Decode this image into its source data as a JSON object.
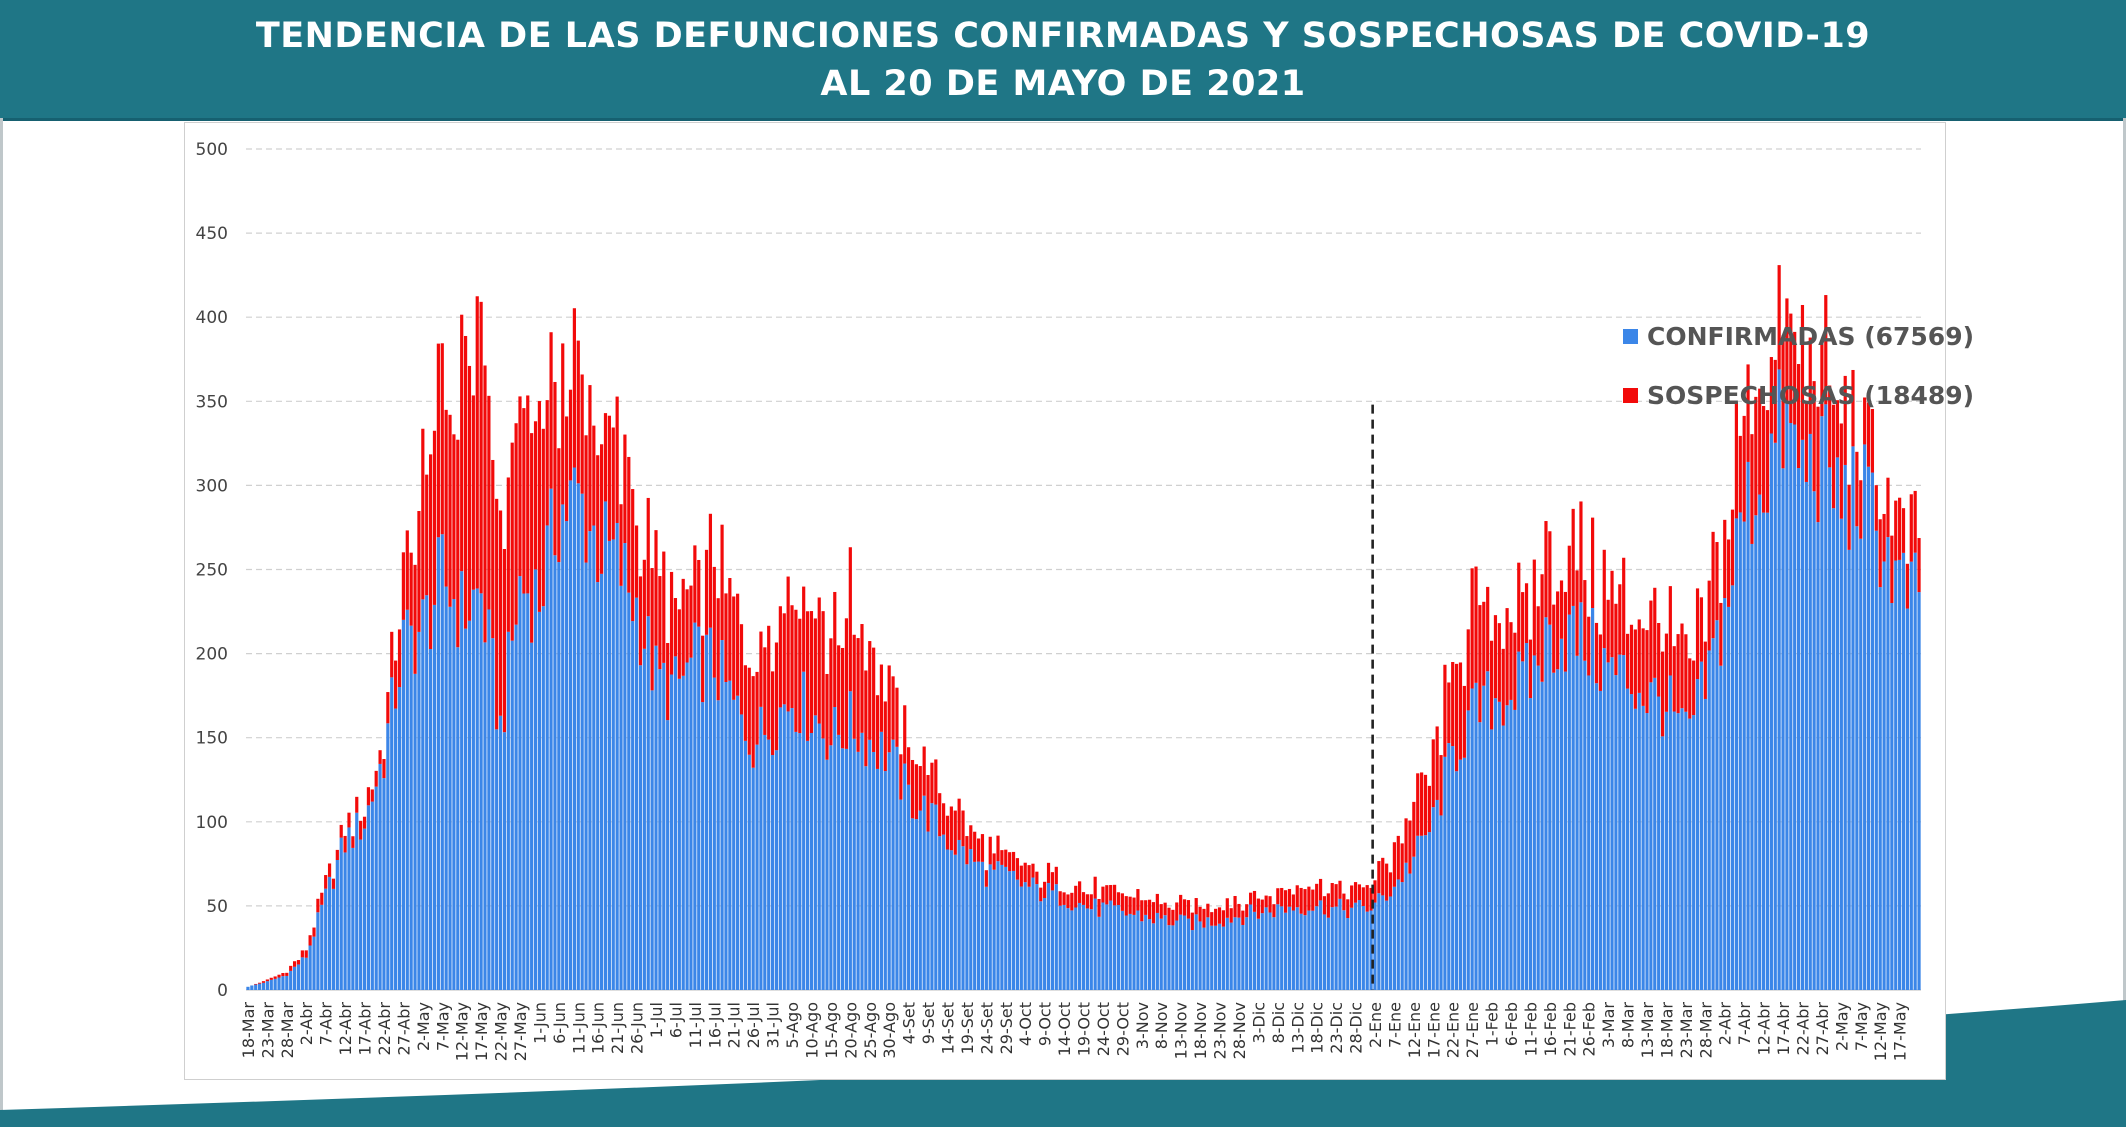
{
  "header": {
    "title_line1": "TENDENCIA DE LAS DEFUNCIONES CONFIRMADAS Y SOSPECHOSAS DE COVID-19",
    "title_line2": "AL 20 DE MAYO DE 2021"
  },
  "colors": {
    "header_bg": "#1f7686",
    "confirmed": "#3b86e8",
    "suspected": "#f20a0a",
    "grid": "#d0d0d0",
    "divider": "#222222"
  },
  "chart_data": {
    "type": "bar",
    "stacked": true,
    "title": "TENDENCIA DE LAS DEFUNCIONES CONFIRMADAS Y SOSPECHOSAS DE COVID-19 AL 20 DE MAYO DE 2021",
    "xlabel": "",
    "ylabel": "",
    "ylim": [
      0,
      500
    ],
    "yticks": [
      0,
      50,
      100,
      150,
      200,
      250,
      300,
      350,
      400,
      450,
      500
    ],
    "grid": true,
    "legend_position": "top-right",
    "x_start": "18-Mar",
    "x_end": "20-May",
    "x_tick_labels": [
      "18-Mar",
      "23-Mar",
      "28-Mar",
      "2-Abr",
      "7-Abr",
      "12-Abr",
      "17-Abr",
      "22-Abr",
      "27-Abr",
      "2-May",
      "7-May",
      "12-May",
      "17-May",
      "22-May",
      "27-May",
      "1-Jun",
      "6-Jun",
      "11-Jun",
      "16-Jun",
      "21-Jun",
      "26-Jun",
      "1-Jul",
      "6-Jul",
      "11-Jul",
      "16-Jul",
      "21-Jul",
      "26-Jul",
      "31-Jul",
      "5-Ago",
      "10-Ago",
      "15-Ago",
      "20-Ago",
      "25-Ago",
      "30-Ago",
      "4-Set",
      "9-Set",
      "14-Set",
      "19-Set",
      "24-Set",
      "29-Set",
      "4-Oct",
      "9-Oct",
      "14-Oct",
      "19-Oct",
      "24-Oct",
      "29-Oct",
      "3-Nov",
      "8-Nov",
      "13-Nov",
      "18-Nov",
      "23-Nov",
      "28-Nov",
      "3-Dic",
      "8-Dic",
      "13-Dic",
      "18-Dic",
      "23-Dic",
      "28-Dic",
      "2-Ene",
      "7-Ene",
      "12-Ene",
      "17-Ene",
      "22-Ene",
      "27-Ene",
      "1-Feb",
      "6-Feb",
      "11-Feb",
      "16-Feb",
      "21-Feb",
      "26-Feb",
      "3-Mar",
      "8-Mar",
      "13-Mar",
      "18-Mar",
      "23-Mar",
      "28-Mar",
      "2-Abr",
      "7-Abr",
      "12-Abr",
      "17-Abr",
      "22-Abr",
      "27-Abr",
      "2-May",
      "7-May",
      "12-May",
      "17-May"
    ],
    "divider_label": "2-Ene",
    "divider_top_value": 348,
    "profile_note": "Daily values are sampled every 5 days from the chart; intermediate days are interpolated.",
    "series": [
      {
        "name": "CONFIRMADAS (67569)",
        "values_every_5_days": [
          2,
          5,
          9,
          20,
          55,
          88,
          100,
          140,
          205,
          215,
          245,
          225,
          235,
          155,
          240,
          235,
          285,
          292,
          265,
          255,
          228,
          185,
          178,
          195,
          195,
          168,
          148,
          160,
          175,
          165,
          150,
          158,
          148,
          140,
          115,
          105,
          90,
          80,
          70,
          68,
          62,
          58,
          56,
          50,
          48,
          46,
          44,
          42,
          40,
          40,
          42,
          44,
          46,
          48,
          50,
          50,
          48,
          48,
          50,
          62,
          78,
          100,
          140,
          162,
          172,
          178,
          185,
          210,
          212,
          205,
          190,
          185,
          175,
          170,
          150,
          180,
          225,
          285,
          305,
          335,
          310,
          315,
          290,
          295,
          270,
          240,
          230
        ]
      },
      {
        "name": "SOSPECHOSAS (18489)",
        "values_every_5_days": [
          0,
          1,
          2,
          4,
          8,
          8,
          10,
          10,
          42,
          80,
          105,
          140,
          140,
          110,
          100,
          100,
          80,
          72,
          65,
          70,
          60,
          55,
          48,
          48,
          60,
          58,
          58,
          62,
          70,
          70,
          62,
          68,
          52,
          42,
          28,
          28,
          22,
          18,
          14,
          12,
          10,
          10,
          10,
          10,
          10,
          10,
          10,
          10,
          10,
          10,
          10,
          10,
          10,
          10,
          12,
          12,
          12,
          12,
          14,
          22,
          28,
          32,
          50,
          58,
          52,
          50,
          48,
          50,
          48,
          46,
          48,
          45,
          45,
          42,
          40,
          45,
          55,
          60,
          60,
          70,
          65,
          55,
          45,
          40,
          35,
          35,
          30
        ]
      }
    ]
  }
}
